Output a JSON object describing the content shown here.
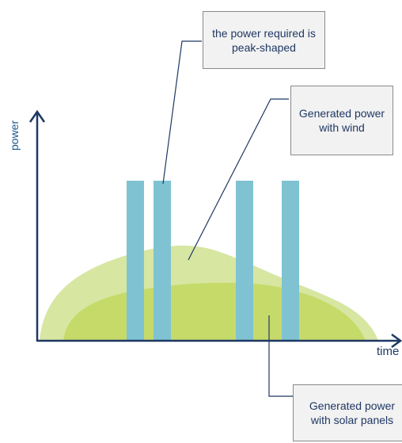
{
  "axes": {
    "y_label": "power",
    "x_label": "time"
  },
  "callouts": {
    "peak": "the power required is peak-shaped",
    "wind": "Generated power with wind",
    "solar": "Generated power with solar panels"
  },
  "colors": {
    "axis": "#1f3864",
    "bars": "#7fc3d3",
    "wind_area": "#d7e6a1",
    "solar_area": "#c6da6a",
    "callout_fill": "#f2f2f2",
    "callout_border": "#8a8a8a",
    "leader_line": "#1f3864"
  }
}
